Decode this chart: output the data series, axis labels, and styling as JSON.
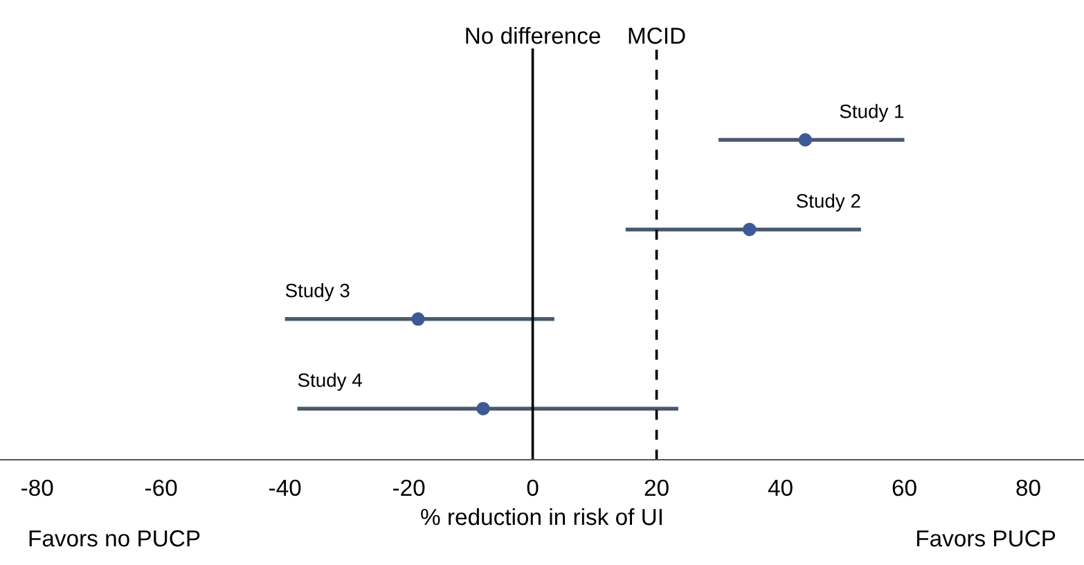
{
  "chart_data": {
    "type": "scatter",
    "orientation": "horizontal",
    "xlabel": "% reduction in risk of UI",
    "categories": [
      "Study 1",
      "Study 2",
      "Study 3",
      "Study 4"
    ],
    "values": [
      44,
      35,
      -18.5,
      -8
    ],
    "errors": [
      [
        30,
        60
      ],
      [
        15,
        53
      ],
      [
        -40,
        3.5
      ],
      [
        -38,
        23.5
      ]
    ],
    "color": "#3d5a96",
    "marker": "circle",
    "xlim": [
      -86,
      89
    ],
    "xticks": [
      -80,
      -60,
      -40,
      -20,
      0,
      20,
      40,
      60,
      80
    ],
    "ref_lines": [
      {
        "axis": "x",
        "value": 0,
        "label": "No difference",
        "color": "#000000",
        "line_style": "solid"
      },
      {
        "axis": "x",
        "value": 20,
        "label": "MCID",
        "color": "#000000",
        "line_style": "dashed"
      }
    ],
    "annotations": [
      "Favors no PUCP",
      "Favors PUCP"
    ],
    "grid": false,
    "legend": false
  }
}
